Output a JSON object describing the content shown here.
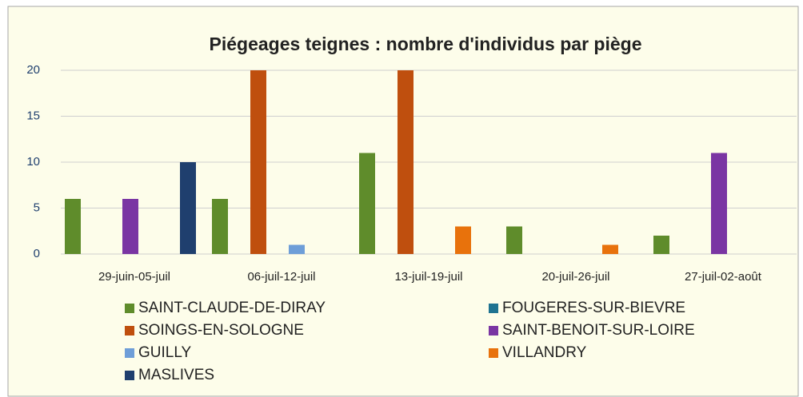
{
  "chart_data": {
    "type": "bar",
    "title": "Piégeages teignes : nombre d'individus par piège",
    "categories": [
      "29-juin-05-juil",
      "06-juil-12-juil",
      "13-juil-19-juil",
      "20-juil-26-juil",
      "27-juil-02-août"
    ],
    "series": [
      {
        "name": "SAINT-CLAUDE-DE-DIRAY",
        "color": "#5f8c2b",
        "values": [
          6,
          6,
          11,
          3,
          2
        ]
      },
      {
        "name": "FOUGERES-SUR-BIEVRE",
        "color": "#1f7391",
        "values": [
          null,
          null,
          null,
          null,
          null
        ]
      },
      {
        "name": "SOINGS-EN-SOLOGNE",
        "color": "#bf4f0e",
        "values": [
          null,
          20,
          20,
          null,
          null
        ]
      },
      {
        "name": "SAINT-BENOIT-SUR-LOIRE",
        "color": "#7a35a3",
        "values": [
          6,
          null,
          null,
          null,
          11
        ]
      },
      {
        "name": "GUILLY",
        "color": "#6e9ed8",
        "values": [
          null,
          1,
          null,
          null,
          null
        ]
      },
      {
        "name": "VILLANDRY",
        "color": "#e8720c",
        "values": [
          null,
          null,
          3,
          1,
          null
        ]
      },
      {
        "name": "MASLIVES",
        "color": "#1f3f6e",
        "values": [
          10,
          null,
          null,
          null,
          null
        ]
      }
    ],
    "ylim": [
      0,
      20
    ],
    "yticks": [
      0,
      5,
      10,
      15,
      20
    ],
    "grid": true
  }
}
